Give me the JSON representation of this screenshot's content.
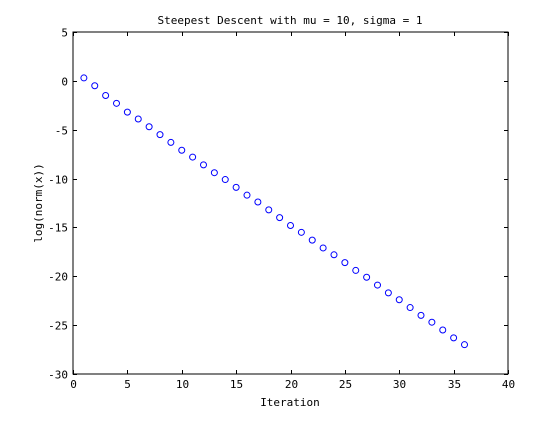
{
  "chart_data": {
    "type": "scatter",
    "title": "Steepest Descent with mu = 10, sigma = 1",
    "xlabel": "Iteration",
    "ylabel": "log(norm(x))",
    "xlim": [
      0,
      40
    ],
    "ylim": [
      -30,
      5
    ],
    "xticks": [
      0,
      5,
      10,
      15,
      20,
      25,
      30,
      35,
      40
    ],
    "yticks": [
      5,
      0,
      -5,
      -10,
      -15,
      -20,
      -25,
      -30
    ],
    "grid": false,
    "legend": "none",
    "marker": "circle-open",
    "marker_color": "#0000ff",
    "series": [
      {
        "x": [
          1,
          2,
          3,
          4,
          5,
          6,
          7,
          8,
          9,
          10,
          11,
          12,
          13,
          14,
          15,
          16,
          17,
          18,
          19,
          20,
          21,
          22,
          23,
          24,
          25,
          26,
          27,
          28,
          29,
          30,
          31,
          32,
          33,
          34,
          35,
          36
        ],
        "y": [
          0.3,
          -0.5,
          -1.5,
          -2.3,
          -3.2,
          -3.9,
          -4.7,
          -5.5,
          -6.3,
          -7.1,
          -7.8,
          -8.6,
          -9.4,
          -10.1,
          -10.9,
          -11.7,
          -12.4,
          -13.2,
          -14.0,
          -14.8,
          -15.5,
          -16.3,
          -17.1,
          -17.8,
          -18.6,
          -19.4,
          -20.1,
          -20.9,
          -21.7,
          -22.4,
          -23.2,
          -24.0,
          -24.7,
          -25.5,
          -26.3,
          -27.0
        ]
      }
    ]
  }
}
